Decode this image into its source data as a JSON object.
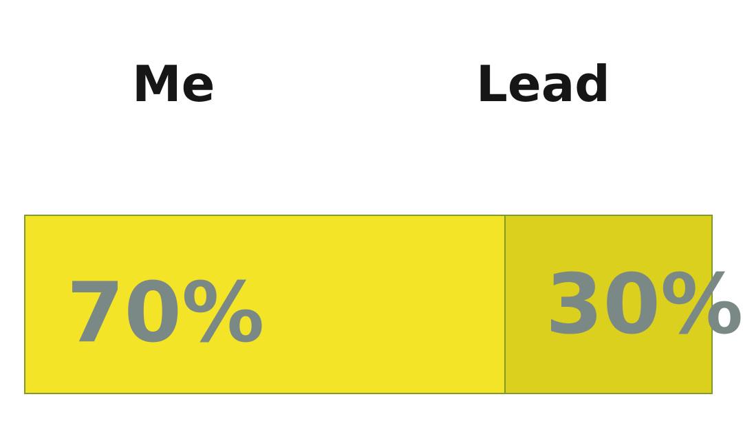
{
  "chart_data": {
    "type": "bar",
    "orientation": "horizontal-stacked",
    "categories": [
      "Me",
      "Lead"
    ],
    "values": [
      70,
      30
    ],
    "value_labels": [
      "70%",
      "30%"
    ],
    "colors": [
      "#f4e428",
      "#dbd01e"
    ],
    "border_color": "#7f9a2e",
    "label_color": "#7a8886"
  }
}
